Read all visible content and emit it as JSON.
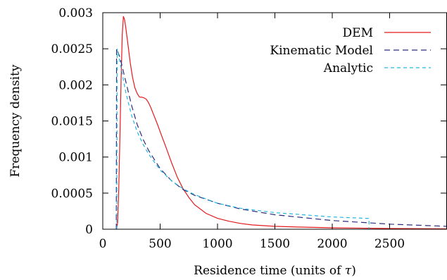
{
  "chart_data": {
    "type": "line",
    "xlabel_prefix": "Residence time (units of ",
    "xlabel_symbol": "τ",
    "xlabel_suffix": ")",
    "ylabel": "Frequency density",
    "xlim": [
      0,
      3000
    ],
    "ylim": [
      0,
      0.003
    ],
    "x_ticks": [
      {
        "value": 0,
        "label": "0"
      },
      {
        "value": 500,
        "label": "500"
      },
      {
        "value": 1000,
        "label": "1000"
      },
      {
        "value": 1500,
        "label": "1500"
      },
      {
        "value": 2000,
        "label": "2000"
      },
      {
        "value": 2500,
        "label": "2500"
      }
    ],
    "y_ticks": [
      {
        "value": 0,
        "label": "0"
      },
      {
        "value": 0.0005,
        "label": "0.0005"
      },
      {
        "value": 0.001,
        "label": "0.001"
      },
      {
        "value": 0.0015,
        "label": "0.0015"
      },
      {
        "value": 0.002,
        "label": "0.002"
      },
      {
        "value": 0.0025,
        "label": "0.0025"
      },
      {
        "value": 0.003,
        "label": "0.003"
      }
    ],
    "grid": false,
    "legend_position": "top-right",
    "series": [
      {
        "name": "DEM",
        "color": "#e41a1c",
        "dash": "solid",
        "points": [
          [
            120,
            0
          ],
          [
            130,
            0.0001
          ],
          [
            140,
            0.0006
          ],
          [
            150,
            0.0013
          ],
          [
            160,
            0.0021
          ],
          [
            170,
            0.0027
          ],
          [
            180,
            0.00295
          ],
          [
            190,
            0.0029
          ],
          [
            200,
            0.0028
          ],
          [
            220,
            0.00255
          ],
          [
            240,
            0.0023
          ],
          [
            260,
            0.0021
          ],
          [
            280,
            0.00196
          ],
          [
            300,
            0.00188
          ],
          [
            320,
            0.00183
          ],
          [
            340,
            0.00183
          ],
          [
            360,
            0.00182
          ],
          [
            380,
            0.0018
          ],
          [
            400,
            0.00175
          ],
          [
            420,
            0.00168
          ],
          [
            440,
            0.0016
          ],
          [
            460,
            0.00152
          ],
          [
            480,
            0.00144
          ],
          [
            500,
            0.00135
          ],
          [
            550,
            0.00114
          ],
          [
            600,
            0.00092
          ],
          [
            650,
            0.00072
          ],
          [
            700,
            0.00056
          ],
          [
            750,
            0.00044
          ],
          [
            800,
            0.00034
          ],
          [
            900,
            0.00022
          ],
          [
            1000,
            0.00015
          ],
          [
            1100,
            0.00011
          ],
          [
            1200,
            8e-05
          ],
          [
            1300,
            6e-05
          ],
          [
            1500,
            4e-05
          ],
          [
            1700,
            3e-05
          ],
          [
            2000,
            2e-05
          ],
          [
            2500,
            1e-05
          ],
          [
            3000,
            5e-06
          ]
        ]
      },
      {
        "name": "Kinematic Model",
        "color": "#2b2d7a",
        "dash": "8,5",
        "points": [
          [
            118,
            0
          ],
          [
            120,
            0.0025
          ],
          [
            150,
            0.00238
          ],
          [
            200,
            0.00205
          ],
          [
            250,
            0.00172
          ],
          [
            300,
            0.00145
          ],
          [
            350,
            0.00125
          ],
          [
            400,
            0.00109
          ],
          [
            500,
            0.00084
          ],
          [
            600,
            0.00067
          ],
          [
            700,
            0.00055
          ],
          [
            800,
            0.00047
          ],
          [
            1000,
            0.00036
          ],
          [
            1200,
            0.00028
          ],
          [
            1500,
            0.0002
          ],
          [
            2000,
            0.00012
          ],
          [
            2500,
            7e-05
          ],
          [
            3000,
            4e-05
          ]
        ]
      },
      {
        "name": "Analytic",
        "color": "#22b6e0",
        "dash": "5,4",
        "points": [
          [
            122,
            0
          ],
          [
            125,
            0.0025
          ],
          [
            150,
            0.00232
          ],
          [
            200,
            0.0019
          ],
          [
            250,
            0.00158
          ],
          [
            300,
            0.00135
          ],
          [
            350,
            0.00118
          ],
          [
            400,
            0.00104
          ],
          [
            500,
            0.00082
          ],
          [
            600,
            0.00067
          ],
          [
            700,
            0.00056
          ],
          [
            800,
            0.00048
          ],
          [
            1000,
            0.00036
          ],
          [
            1200,
            0.00029
          ],
          [
            1500,
            0.00023
          ],
          [
            2000,
            0.00017
          ],
          [
            2300,
            0.00015
          ],
          [
            2320,
            0.00015
          ],
          [
            2320,
            0
          ]
        ]
      }
    ]
  }
}
